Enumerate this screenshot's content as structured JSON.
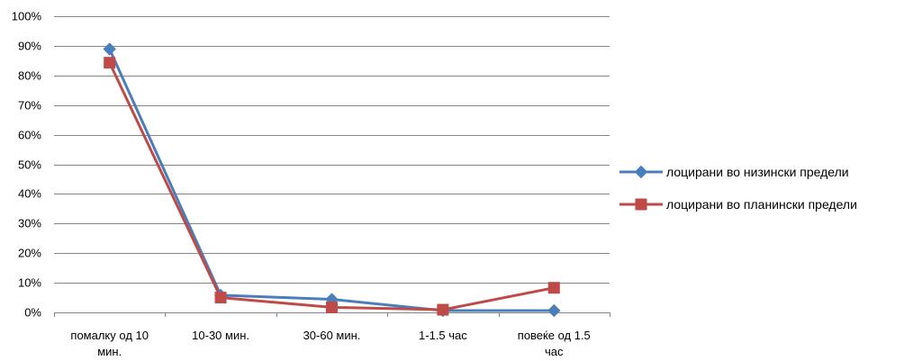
{
  "chart_data": {
    "type": "line",
    "title": "",
    "xlabel": "",
    "ylabel": "",
    "categories": [
      [
        "помалку од 10",
        "мин."
      ],
      [
        "10-30 мин."
      ],
      [
        "30-60 мин."
      ],
      [
        "1-1.5 час"
      ],
      [
        "повеќе од  1.5",
        "час"
      ]
    ],
    "ylim": [
      0,
      100
    ],
    "yticks": [
      "0%",
      "10%",
      "20%",
      "30%",
      "40%",
      "50%",
      "60%",
      "70%",
      "80%",
      "90%",
      "100%"
    ],
    "grid": true,
    "legend_position": "right",
    "series": [
      {
        "name": "лоцирани во низински предели",
        "color": "#4a7ebb",
        "marker": "diamond",
        "values": [
          88.9,
          5.8,
          4.4,
          0.6,
          0.6
        ]
      },
      {
        "name": "лоцирани во планински предели",
        "color": "#be4b48",
        "marker": "square",
        "values": [
          84.3,
          5.0,
          1.7,
          0.9,
          8.3
        ]
      }
    ]
  }
}
